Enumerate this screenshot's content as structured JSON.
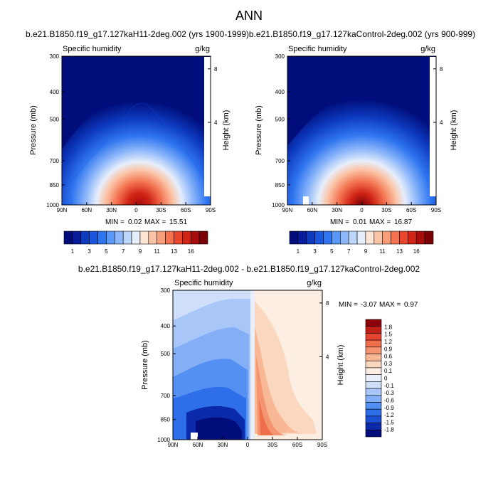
{
  "page_title": "ANN",
  "colors": {
    "palette12": [
      "#000d7a",
      "#071c9b",
      "#0d3abf",
      "#1b57dc",
      "#2f75ef",
      "#5a98f7",
      "#8db7fa",
      "#bcd6fb",
      "#e7eefb",
      "#fde5d6",
      "#fbc4a6",
      "#f89e7a",
      "#f3724f",
      "#e8472d",
      "#cf2416",
      "#a80d0c",
      "#7a0006"
    ],
    "diff_palette": [
      "#000d7a",
      "#0a2aa9",
      "#1b4fd4",
      "#2e6ee9",
      "#5390f1",
      "#84aff6",
      "#a9c6f8",
      "#cfdff9",
      "#e9f0fb",
      "#fdeee3",
      "#fbd7bf",
      "#f9b895",
      "#f59470",
      "#ef6e4c",
      "#e34530",
      "#c21f17",
      "#8e0309"
    ]
  },
  "chart_data": [
    {
      "type": "heatmap",
      "title": "b.e21.B1850.f19_g17.127kaH11-2deg.002 (yrs 1900-1999)",
      "left_string": "Specific humidity",
      "right_string": "g/kg",
      "ylabel": "Pressure (mb)",
      "ylabel_right": "Height (km)",
      "y_ticks": [
        "300",
        "400",
        "500",
        "700",
        "850",
        "1000"
      ],
      "y_ticks_right": [
        "8",
        "4"
      ],
      "x_ticks": [
        "90N",
        "60N",
        "30N",
        "0",
        "30S",
        "60S",
        "90S"
      ],
      "min_label": "MIN =",
      "min_value": "0.02",
      "max_label": "MAX =",
      "max_value": "15.51",
      "peak_value": 15.51,
      "colorbar_labels": [
        "1",
        "3",
        "5",
        "7",
        "9",
        "11",
        "13",
        "16"
      ]
    },
    {
      "type": "heatmap",
      "title": "b.e21.B1850.f19_g17.127kaControl-2deg.002 (yrs 900-999)",
      "left_string": "Specific humidity",
      "right_string": "g/kg",
      "ylabel": "Pressure (mb)",
      "ylabel_right": "Height (km)",
      "y_ticks": [
        "300",
        "400",
        "500",
        "700",
        "850",
        "1000"
      ],
      "y_ticks_right": [
        "8",
        "4"
      ],
      "x_ticks": [
        "90N",
        "60N",
        "30N",
        "0",
        "30S",
        "60S",
        "90S"
      ],
      "min_label": "MIN =",
      "min_value": "0.01",
      "max_label": "MAX =",
      "max_value": "16.87",
      "peak_value": 16.87,
      "colorbar_labels": [
        "1",
        "3",
        "5",
        "7",
        "9",
        "11",
        "13",
        "16"
      ]
    },
    {
      "type": "heatmap",
      "title": "b.e21.B1850.f19_g17.127kaH11-2deg.002 - b.e21.B1850.f19_g17.127kaControl-2deg.002",
      "left_string": "Specific humidity",
      "right_string": "g/kg",
      "ylabel": "Pressure (mb)",
      "ylabel_right": "Height (km)",
      "y_ticks": [
        "300",
        "400",
        "500",
        "700",
        "850",
        "1000"
      ],
      "y_ticks_right": [
        "8",
        "4"
      ],
      "x_ticks": [
        "90N",
        "60N",
        "30N",
        "0",
        "30S",
        "60S",
        "90S"
      ],
      "min_label": "MIN =",
      "min_value": "-3.07",
      "max_label": "MAX =",
      "max_value": "0.97",
      "colorbar_labels": [
        "1.8",
        "1.5",
        "1.2",
        "0.9",
        "0.6",
        "0.3",
        "0.1",
        "0",
        "-0.1",
        "-0.3",
        "-0.6",
        "-0.9",
        "-1.2",
        "-1.5",
        "-1.8"
      ]
    }
  ]
}
